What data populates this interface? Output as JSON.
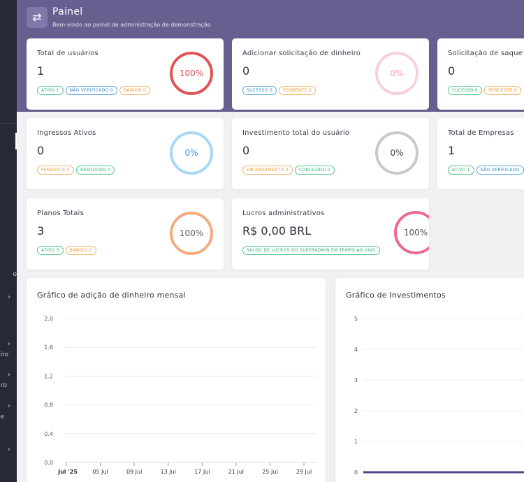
{
  "header": {
    "title": "Painel",
    "subtitle": "Bem-vindo ao painel de administração de demonstração"
  },
  "sidebar": {
    "fragments": [
      "o",
      "iro",
      "ro",
      "e"
    ]
  },
  "cards": {
    "users": {
      "title": "Total de usuários",
      "value": "1",
      "percent": "100%",
      "badges": [
        "ATIVO 1",
        "NÃO VERIFICADO 0",
        "BANIDO 0"
      ]
    },
    "add_money": {
      "title": "Adicionar solicitação de dinheiro",
      "value": "0",
      "percent": "0%",
      "badges": [
        "SUCESSO 0",
        "PENDENTE 0"
      ]
    },
    "withdraw": {
      "title": "Solicitação de saque",
      "value": "0",
      "badges": [
        "SUCESSO 0",
        "PENDENTE 0"
      ]
    },
    "tickets": {
      "title": "Ingressos Ativos",
      "value": "0",
      "percent": "0%",
      "badges": [
        "PENDENTE 0",
        "RESOLVIDO 0"
      ]
    },
    "investment": {
      "title": "Investimento total do usuário",
      "value": "0",
      "percent": "0%",
      "badges": [
        "EM ANDAMENTO 0",
        "CONCLUÍDO 0"
      ]
    },
    "companies": {
      "title": "Total de Empresas",
      "value": "1",
      "badges": [
        "ATIVO 1",
        "NÃO VERIFICADO"
      ]
    },
    "plans": {
      "title": "Planos Totais",
      "value": "3",
      "percent": "100%",
      "badges": [
        "ATIVO 3",
        "BANIDO 0"
      ]
    },
    "profits": {
      "title": "Lucros administrativos",
      "value": "R$ 0,00 BRL",
      "percent": "100%",
      "badges": [
        "SALDO DE LUCROS DO SUPERADMIN EM TEMPO AO VIVO"
      ]
    }
  },
  "colors": {
    "header_bg": "#675f90",
    "sidebar_bg": "#262a37",
    "line": "#4a4488"
  },
  "chart_data": [
    {
      "type": "line",
      "title": "Gráfico de adição de dinheiro mensal",
      "x": [
        "Jul '25",
        "05 Jul",
        "09 Jul",
        "13 Jul",
        "17 Jul",
        "21 Jul",
        "25 Jul",
        "29 Jul"
      ],
      "y_ticks": [
        "2.0",
        "1.6",
        "1.2",
        "0.8",
        "0.4",
        "0.0"
      ],
      "ylim": [
        0,
        2
      ],
      "grid": true,
      "series": [
        {
          "values": [
            0,
            0,
            0,
            0,
            0,
            0,
            0,
            0
          ]
        }
      ]
    },
    {
      "type": "line",
      "title": "Gráfico de Investimentos",
      "y_ticks": [
        "5",
        "4",
        "3",
        "2",
        "1",
        "0"
      ],
      "ylim": [
        0,
        5
      ],
      "grid": true,
      "series": [
        {
          "values": [
            0,
            0
          ]
        }
      ]
    }
  ]
}
